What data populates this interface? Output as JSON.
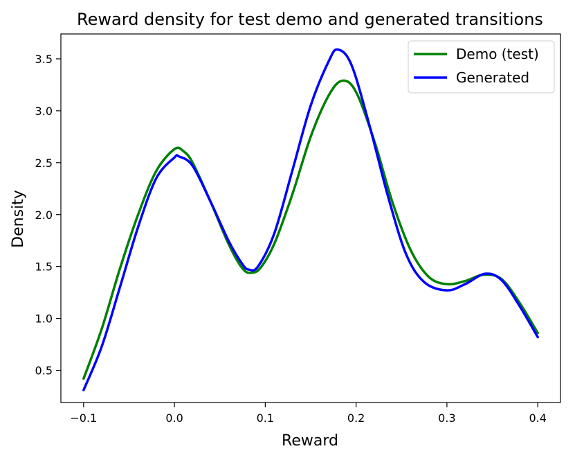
{
  "chart_data": {
    "type": "line",
    "title": "Reward density for test demo and generated transitions",
    "xlabel": "Reward",
    "ylabel": "Density",
    "xlim": [
      -0.125,
      0.425
    ],
    "ylim": [
      0.19,
      3.74
    ],
    "xticks": [
      -0.1,
      0.0,
      0.1,
      0.2,
      0.3,
      0.4
    ],
    "xtick_labels": [
      "−0.1",
      "0.0",
      "0.1",
      "0.2",
      "0.3",
      "0.4"
    ],
    "yticks": [
      0.5,
      1.0,
      1.5,
      2.0,
      2.5,
      3.0,
      3.5
    ],
    "ytick_labels": [
      "0.5",
      "1.0",
      "1.5",
      "2.0",
      "2.5",
      "3.0",
      "3.5"
    ],
    "grid": false,
    "legend_position": "top-right",
    "series": [
      {
        "name": "Demo (test)",
        "color": "#008000",
        "points": [
          [
            -0.1,
            0.42
          ],
          [
            -0.08,
            0.9
          ],
          [
            -0.06,
            1.48
          ],
          [
            -0.04,
            2.0
          ],
          [
            -0.02,
            2.42
          ],
          [
            0.0,
            2.63
          ],
          [
            0.01,
            2.61
          ],
          [
            0.02,
            2.5
          ],
          [
            0.04,
            2.12
          ],
          [
            0.06,
            1.71
          ],
          [
            0.075,
            1.48
          ],
          [
            0.085,
            1.44
          ],
          [
            0.095,
            1.49
          ],
          [
            0.11,
            1.72
          ],
          [
            0.13,
            2.2
          ],
          [
            0.15,
            2.75
          ],
          [
            0.17,
            3.15
          ],
          [
            0.185,
            3.29
          ],
          [
            0.2,
            3.18
          ],
          [
            0.22,
            2.71
          ],
          [
            0.24,
            2.12
          ],
          [
            0.26,
            1.66
          ],
          [
            0.28,
            1.4
          ],
          [
            0.3,
            1.33
          ],
          [
            0.32,
            1.36
          ],
          [
            0.34,
            1.42
          ],
          [
            0.36,
            1.38
          ],
          [
            0.38,
            1.15
          ],
          [
            0.4,
            0.86
          ]
        ]
      },
      {
        "name": "Generated",
        "color": "#0000ff",
        "points": [
          [
            -0.1,
            0.31
          ],
          [
            -0.08,
            0.73
          ],
          [
            -0.06,
            1.3
          ],
          [
            -0.04,
            1.88
          ],
          [
            -0.02,
            2.35
          ],
          [
            0.0,
            2.55
          ],
          [
            0.005,
            2.56
          ],
          [
            0.02,
            2.47
          ],
          [
            0.04,
            2.12
          ],
          [
            0.06,
            1.74
          ],
          [
            0.075,
            1.52
          ],
          [
            0.082,
            1.47
          ],
          [
            0.092,
            1.5
          ],
          [
            0.11,
            1.82
          ],
          [
            0.13,
            2.43
          ],
          [
            0.15,
            3.05
          ],
          [
            0.17,
            3.48
          ],
          [
            0.18,
            3.59
          ],
          [
            0.195,
            3.44
          ],
          [
            0.215,
            2.85
          ],
          [
            0.235,
            2.18
          ],
          [
            0.255,
            1.62
          ],
          [
            0.275,
            1.35
          ],
          [
            0.3,
            1.27
          ],
          [
            0.32,
            1.33
          ],
          [
            0.342,
            1.43
          ],
          [
            0.36,
            1.37
          ],
          [
            0.38,
            1.12
          ],
          [
            0.4,
            0.82
          ]
        ]
      }
    ]
  }
}
